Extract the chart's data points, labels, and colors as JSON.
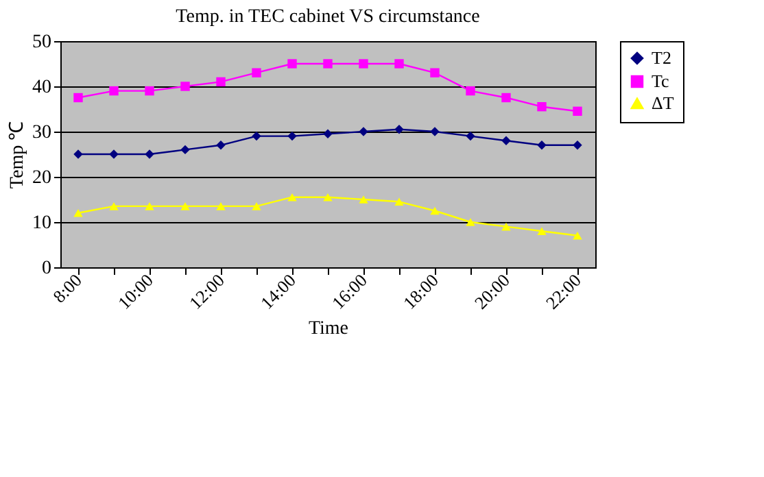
{
  "chart_data": {
    "type": "line",
    "title": "Temp. in TEC cabinet VS circumstance",
    "xlabel": "Time",
    "ylabel": "Temp ℃",
    "categories": [
      "8:00",
      null,
      "10:00",
      null,
      "12:00",
      null,
      "14:00",
      null,
      "16:00",
      null,
      "18:00",
      null,
      "20:00",
      null,
      "22:00"
    ],
    "series": [
      {
        "name": "T2",
        "color": "#000080",
        "marker": "diamond",
        "values": [
          25,
          25,
          25,
          26,
          27,
          29,
          29,
          29.5,
          30,
          30.5,
          30,
          29,
          28,
          27,
          27
        ]
      },
      {
        "name": "Tc",
        "color": "#ff00ff",
        "marker": "square",
        "values": [
          37.5,
          39,
          39,
          40,
          41,
          43,
          45,
          45,
          45,
          45,
          43,
          39,
          37.5,
          35.5,
          34.5
        ]
      },
      {
        "name": "ΔT",
        "color": "#ffff00",
        "marker": "triangle",
        "values": [
          12,
          13.5,
          13.5,
          13.5,
          13.5,
          13.5,
          15.5,
          15.5,
          15,
          14.5,
          12.5,
          10,
          9,
          8,
          7
        ]
      }
    ],
    "ylim": [
      0,
      50
    ],
    "yticks": [
      0,
      10,
      20,
      30,
      40,
      50
    ],
    "grid": "y",
    "legend": "right",
    "line_style": "solid"
  }
}
